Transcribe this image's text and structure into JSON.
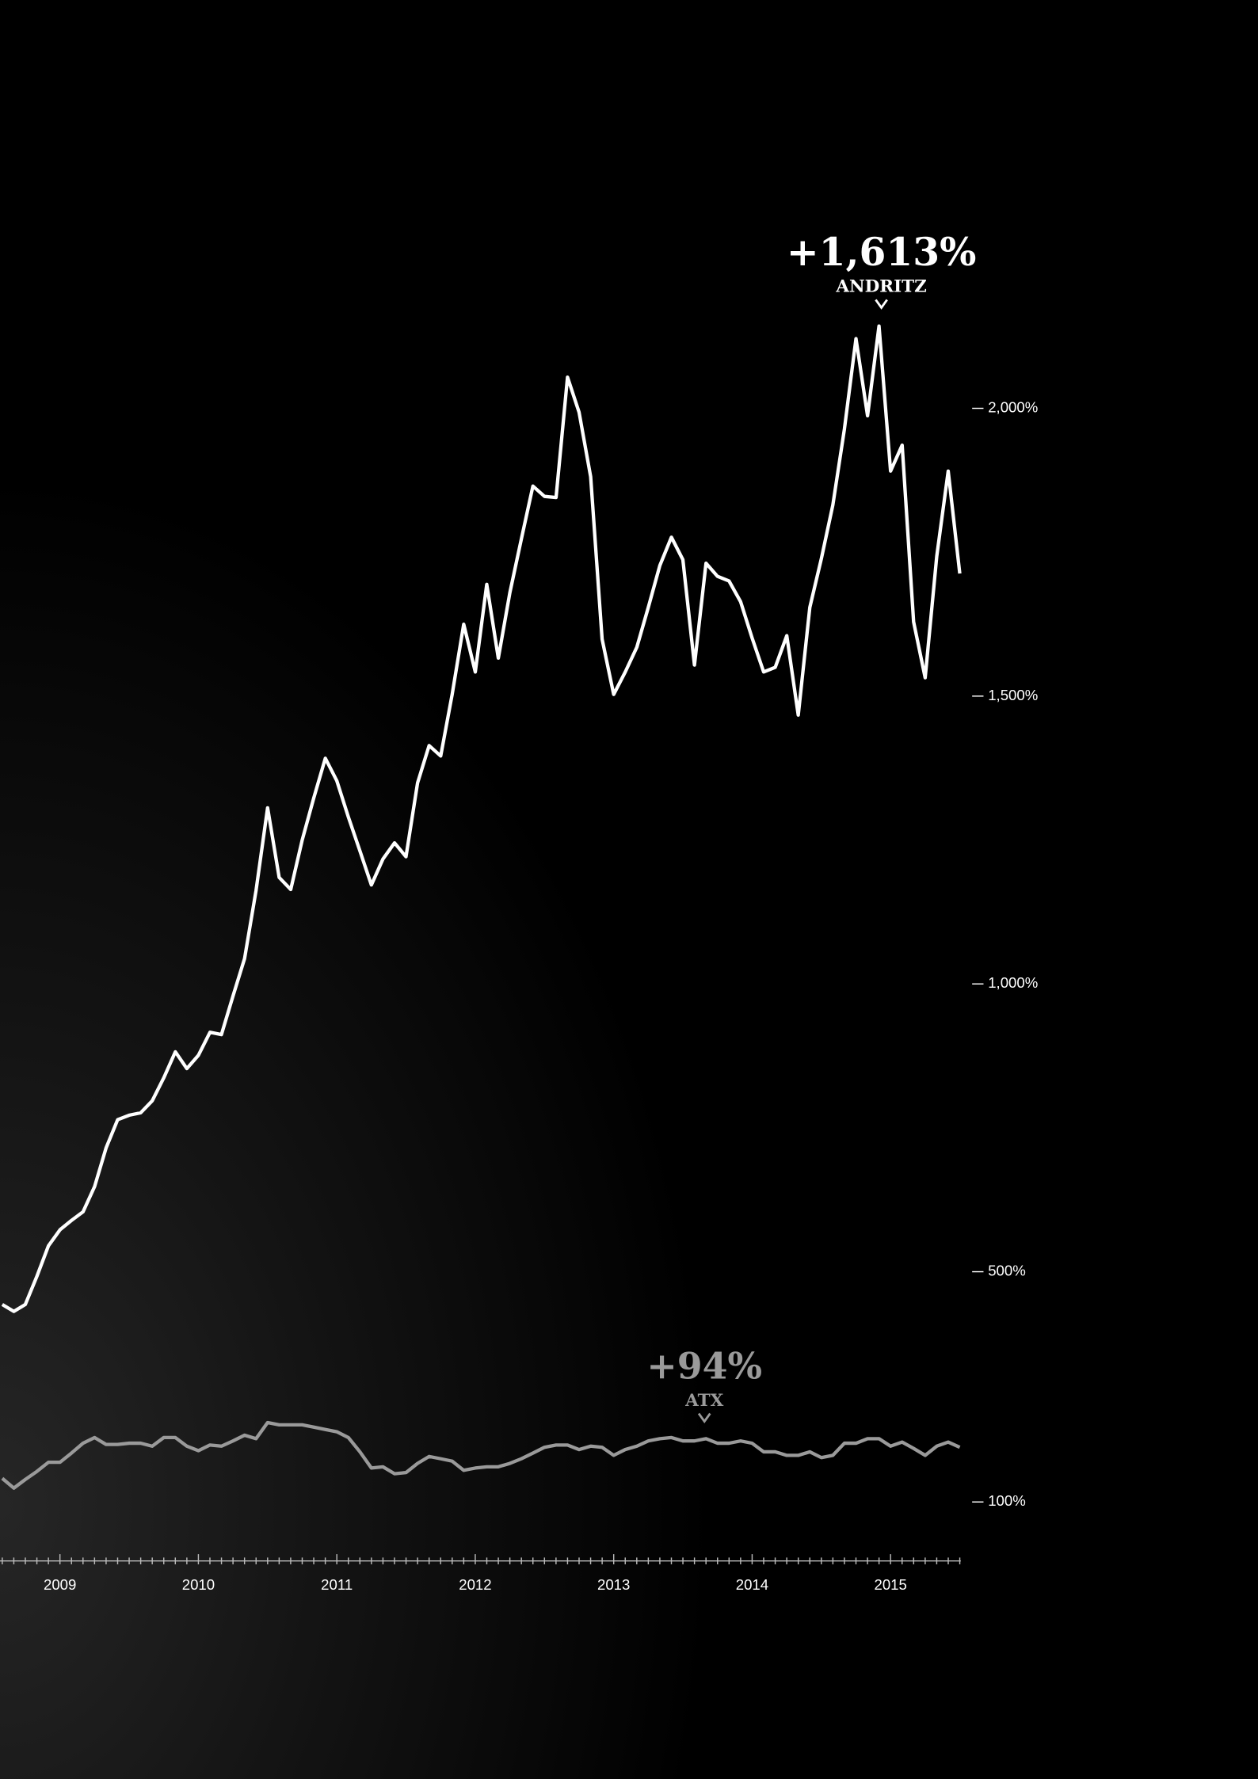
{
  "chart_data": {
    "type": "line",
    "categories": [
      null,
      null,
      null,
      null,
      null,
      "2009",
      null,
      null,
      null,
      null,
      null,
      null,
      null,
      null,
      null,
      null,
      null,
      "2010",
      null,
      null,
      null,
      null,
      null,
      null,
      null,
      null,
      null,
      null,
      null,
      "2011",
      null,
      null,
      null,
      null,
      null,
      null,
      null,
      null,
      null,
      null,
      null,
      "2012",
      null,
      null,
      null,
      null,
      null,
      null,
      null,
      null,
      null,
      null,
      null,
      "2013",
      null,
      null,
      null,
      null,
      null,
      null,
      null,
      null,
      null,
      null,
      null,
      "2014",
      null,
      null,
      null,
      null,
      null,
      null,
      null,
      null,
      null,
      null,
      null,
      "2015",
      null,
      null,
      null,
      null,
      null,
      null
    ],
    "series": [
      {
        "name": "ANDRITZ",
        "annotation": "+1,613%",
        "color": "#ffffff",
        "values": [
          443,
          431,
          443,
          492,
          545,
          573,
          589,
          604,
          648,
          715,
          764,
          772,
          776,
          797,
          837,
          882,
          853,
          876,
          916,
          912,
          979,
          1044,
          1162,
          1306,
          1185,
          1164,
          1250,
          1323,
          1392,
          1353,
          1290,
          1231,
          1172,
          1217,
          1245,
          1221,
          1349,
          1414,
          1396,
          1503,
          1625,
          1542,
          1694,
          1566,
          1680,
          1773,
          1865,
          1847,
          1845,
          2054,
          1993,
          1881,
          1599,
          1503,
          1542,
          1585,
          1654,
          1727,
          1776,
          1737,
          1554,
          1731,
          1708,
          1700,
          1664,
          1601,
          1542,
          1550,
          1605,
          1467,
          1654,
          1739,
          1832,
          1964,
          2121,
          1987,
          2143,
          1891,
          1936,
          1629,
          1532,
          1743,
          1891,
          1713
        ]
      },
      {
        "name": "ATX",
        "annotation": "+94%",
        "color": "#9a9a9a",
        "values": [
          141,
          124,
          139,
          153,
          169,
          169,
          185,
          202,
          212,
          200,
          200,
          202,
          202,
          197,
          212,
          212,
          197,
          189,
          199,
          197,
          206,
          216,
          210,
          238,
          234,
          234,
          234,
          230,
          226,
          222,
          212,
          187,
          159,
          161,
          149,
          151,
          167,
          179,
          175,
          171,
          155,
          159,
          161,
          161,
          167,
          175,
          185,
          195,
          199,
          199,
          191,
          197,
          195,
          181,
          191,
          197,
          206,
          210,
          212,
          206,
          206,
          210,
          202,
          202,
          206,
          202,
          187,
          187,
          181,
          181,
          187,
          177,
          181,
          202,
          202,
          210,
          210,
          197,
          204,
          193,
          181,
          197,
          204,
          195
        ]
      }
    ],
    "ylim": [
      0,
      2400
    ],
    "yticks": [
      {
        "value": 100,
        "label": "100%"
      },
      {
        "value": 500,
        "label": "500%"
      },
      {
        "value": 1000,
        "label": "1,000%"
      },
      {
        "value": 1500,
        "label": "1,500%"
      },
      {
        "value": 2000,
        "label": "2,000%"
      }
    ]
  }
}
